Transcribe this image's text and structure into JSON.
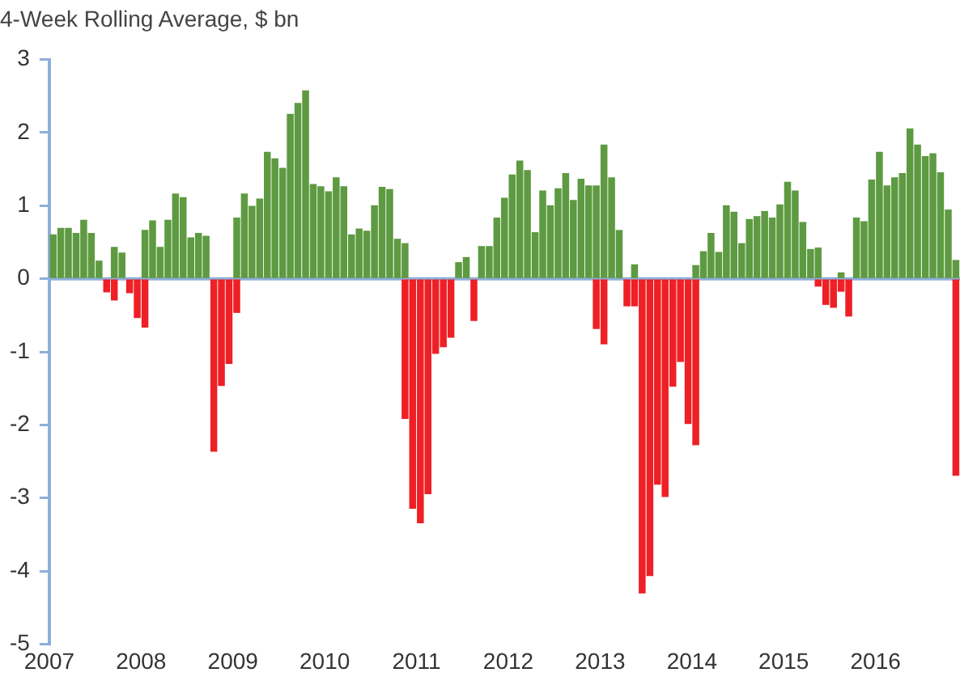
{
  "chart_data": {
    "type": "bar",
    "title": "4-Week Rolling Average, $ bn",
    "series": [
      {
        "color": "#5e9a41",
        "x": [
          2007.042,
          2007.125,
          2007.208,
          2007.292,
          2007.375,
          2007.458,
          2007.542,
          2007.708,
          2007.792,
          2008.042,
          2008.125,
          2008.208,
          2008.292,
          2008.375,
          2008.458,
          2008.542,
          2008.625,
          2008.708,
          2009.042,
          2009.125,
          2009.208,
          2009.292,
          2009.375,
          2009.458,
          2009.542,
          2009.625,
          2009.708,
          2009.792,
          2009.875,
          2009.958,
          2010.042,
          2010.125,
          2010.208,
          2010.292,
          2010.375,
          2010.458,
          2010.542,
          2010.625,
          2010.708,
          2010.792,
          2010.875,
          2011.458,
          2011.542,
          2011.708,
          2011.792,
          2011.875,
          2011.958,
          2012.042,
          2012.125,
          2012.208,
          2012.292,
          2012.375,
          2012.458,
          2012.542,
          2012.625,
          2012.708,
          2012.792,
          2012.875,
          2012.958,
          2013.042,
          2013.125,
          2013.208,
          2013.375,
          2014.042,
          2014.125,
          2014.208,
          2014.292,
          2014.375,
          2014.458,
          2014.542,
          2014.625,
          2014.708,
          2014.792,
          2014.875,
          2014.958,
          2015.042,
          2015.125,
          2015.208,
          2015.292,
          2015.375,
          2015.625,
          2015.792,
          2015.875,
          2015.958,
          2016.042,
          2016.125,
          2016.208,
          2016.292,
          2016.375,
          2016.458,
          2016.542,
          2016.625,
          2016.708,
          2016.792,
          2016.875
        ],
        "values": [
          0.6,
          0.69,
          0.69,
          0.62,
          0.8,
          0.62,
          0.24,
          0.43,
          0.35,
          0.66,
          0.79,
          0.43,
          0.8,
          1.16,
          1.11,
          0.56,
          0.62,
          0.58,
          0.83,
          1.16,
          0.99,
          1.09,
          1.73,
          1.64,
          1.51,
          2.25,
          2.4,
          2.57,
          1.29,
          1.26,
          1.19,
          1.38,
          1.26,
          0.6,
          0.68,
          0.65,
          1.0,
          1.25,
          1.22,
          0.54,
          0.48,
          0.22,
          0.29,
          0.44,
          0.44,
          0.83,
          1.1,
          1.42,
          1.61,
          1.48,
          0.63,
          1.2,
          1.0,
          1.23,
          1.44,
          1.07,
          1.36,
          1.27,
          1.27,
          1.83,
          1.38,
          0.66,
          0.19,
          0.18,
          0.37,
          0.62,
          0.36,
          1.0,
          0.91,
          0.48,
          0.81,
          0.85,
          0.92,
          0.83,
          1.01,
          1.32,
          1.2,
          0.77,
          0.4,
          0.42,
          0.08,
          0.83,
          0.78,
          1.35,
          1.73,
          1.27,
          1.38,
          1.44,
          2.05,
          1.83,
          1.67,
          1.71,
          1.45,
          0.94,
          0.25
        ]
      },
      {
        "color": "#ee2026",
        "x": [
          2007.625,
          2007.708,
          2007.875,
          2007.958,
          2008.042,
          2008.792,
          2008.875,
          2008.958,
          2009.042,
          2010.875,
          2010.958,
          2011.042,
          2011.125,
          2011.208,
          2011.292,
          2011.375,
          2011.625,
          2012.958,
          2013.042,
          2013.292,
          2013.375,
          2013.458,
          2013.542,
          2013.625,
          2013.708,
          2013.792,
          2013.875,
          2013.958,
          2014.042,
          2015.375,
          2015.458,
          2015.542,
          2015.625,
          2015.708,
          2016.875
        ],
        "values": [
          -0.18,
          -0.29,
          -0.19,
          -0.53,
          -0.66,
          -2.36,
          -1.46,
          -1.16,
          -0.46,
          -1.91,
          -3.14,
          -3.34,
          -2.94,
          -1.02,
          -0.93,
          -0.8,
          -0.57,
          -0.68,
          -0.89,
          -0.37,
          -0.37,
          -4.3,
          -4.06,
          -2.81,
          -2.98,
          -1.47,
          -1.13,
          -1.98,
          -2.27,
          -0.1,
          -0.35,
          -0.39,
          -0.17,
          -0.51,
          -2.69
        ]
      }
    ],
    "xlim": [
      2007,
      2016.92
    ],
    "xticks": [
      2007,
      2008,
      2009,
      2010,
      2011,
      2012,
      2013,
      2014,
      2015,
      2016
    ],
    "ylim": [
      -5,
      3
    ],
    "yticks": [
      -5,
      -4,
      -3,
      -2,
      -1,
      0,
      1,
      2,
      3
    ],
    "grid": false,
    "legend": false,
    "ref_lines": [
      {
        "axis": "y",
        "value": 0,
        "color": "#8eaedb"
      }
    ]
  }
}
